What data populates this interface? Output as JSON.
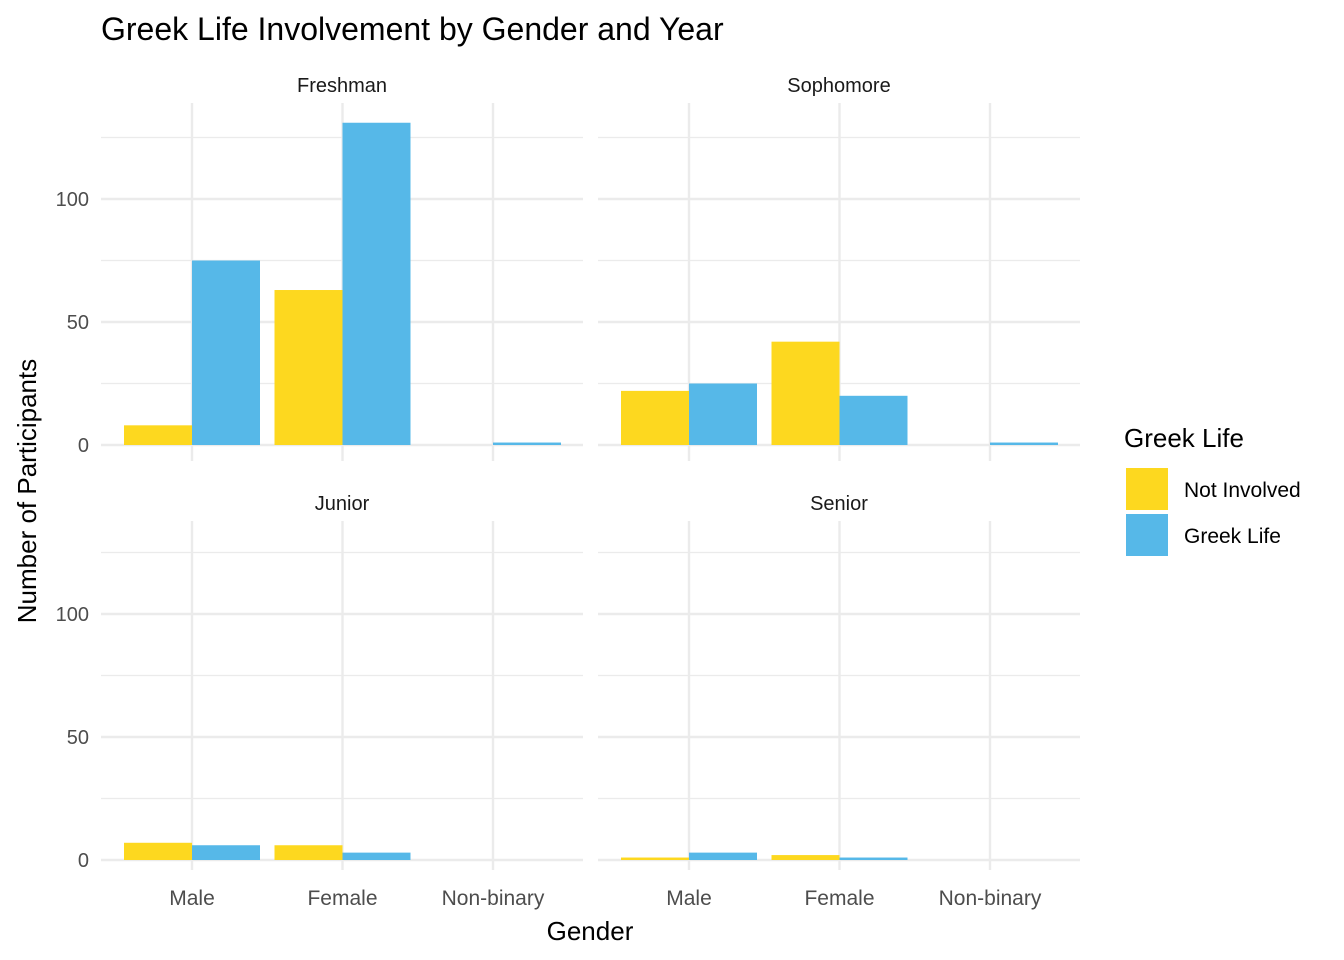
{
  "chart_data": {
    "type": "bar",
    "title": "Greek Life Involvement by Gender and Year",
    "xlabel": "Gender",
    "ylabel": "Number of Participants",
    "ylim": [
      0,
      135
    ],
    "yticks": [
      0,
      50,
      100
    ],
    "grid": true,
    "legend": {
      "title": "Greek Life",
      "position": "right",
      "entries": [
        {
          "name": "Not Involved",
          "color": "#FDD81F"
        },
        {
          "name": "Greek Life",
          "color": "#56B8E8"
        }
      ]
    },
    "categories": [
      "Male",
      "Female",
      "Non-binary"
    ],
    "facets": [
      {
        "name": "Freshman",
        "series": [
          {
            "name": "Not Involved",
            "values": [
              8,
              63,
              0
            ]
          },
          {
            "name": "Greek Life",
            "values": [
              75,
              131,
              1
            ]
          }
        ]
      },
      {
        "name": "Sophomore",
        "series": [
          {
            "name": "Not Involved",
            "values": [
              22,
              42,
              0
            ]
          },
          {
            "name": "Greek Life",
            "values": [
              25,
              20,
              1
            ]
          }
        ]
      },
      {
        "name": "Junior",
        "series": [
          {
            "name": "Not Involved",
            "values": [
              7,
              6,
              0
            ]
          },
          {
            "name": "Greek Life",
            "values": [
              6,
              3,
              0
            ]
          }
        ]
      },
      {
        "name": "Senior",
        "series": [
          {
            "name": "Not Involved",
            "values": [
              1,
              2,
              0
            ]
          },
          {
            "name": "Greek Life",
            "values": [
              3,
              1,
              0
            ]
          }
        ]
      }
    ]
  }
}
